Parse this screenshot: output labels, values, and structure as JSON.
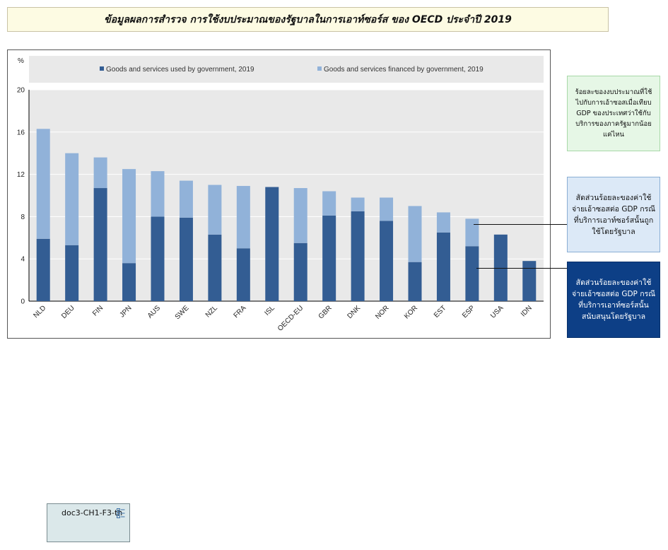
{
  "title": "ข้อมูลผลการสำรวจ การใช้งบประมาณของรัฐบาลในการเอาท์ซอร์ส ของ OECD ประจำปี 2019",
  "chart_data": {
    "type": "bar",
    "stacked": true,
    "y_unit": "%",
    "ylim": [
      0,
      20
    ],
    "yticks": [
      0,
      4,
      8,
      12,
      16,
      20
    ],
    "grid": true,
    "legend_position": "top",
    "categories": [
      "NLD",
      "DEU",
      "FIN",
      "JPN",
      "AUS",
      "SWE",
      "NZL",
      "FRA",
      "ISL",
      "OECD-EU",
      "GBR",
      "DNK",
      "NOR",
      "KOR",
      "EST",
      "ESP",
      "USA",
      "IDN"
    ],
    "series": [
      {
        "name": "Goods and services used by government, 2019",
        "color": "#335d93",
        "values": [
          5.9,
          5.3,
          10.7,
          3.6,
          8.0,
          7.9,
          6.3,
          5.0,
          10.8,
          5.5,
          8.1,
          8.5,
          7.6,
          3.7,
          6.5,
          5.2,
          6.3,
          3.8
        ]
      },
      {
        "name": "Goods and services financed by government, 2019",
        "color": "#91b2d9",
        "values": [
          10.4,
          8.7,
          2.9,
          8.9,
          4.3,
          3.5,
          4.7,
          5.9,
          0.0,
          5.2,
          2.3,
          1.3,
          2.2,
          5.3,
          1.9,
          2.6,
          0.0,
          0.0
        ]
      }
    ]
  },
  "annotations": {
    "total_note": "ร้อยละของงบประมาณที่ใช้ไปกับการเอ้าซอสเมื่อเทียบ GDP ของประเทศว่าใช้กับบริการของภาครัฐมากน้อยแค่ไหน",
    "financed_note": "สัดส่วนร้อยละของค่าใช้จ่ายเอ้าซอสต่อ GDP กรณีที่บริการเอาท์ซอร์สนั้นถูกใช้โดยรัฐบาล",
    "used_note": "สัดส่วนร้อยละของค่าใช้จ่ายเอ้าซอสต่อ GDP กรณีที่บริการเอาท์ซอร์สนั้นสนับสนุนโดยรัฐบาล"
  },
  "doc_tag": {
    "label": "doc3-CH1-F3-th",
    "icon": "document-structure-icon"
  }
}
